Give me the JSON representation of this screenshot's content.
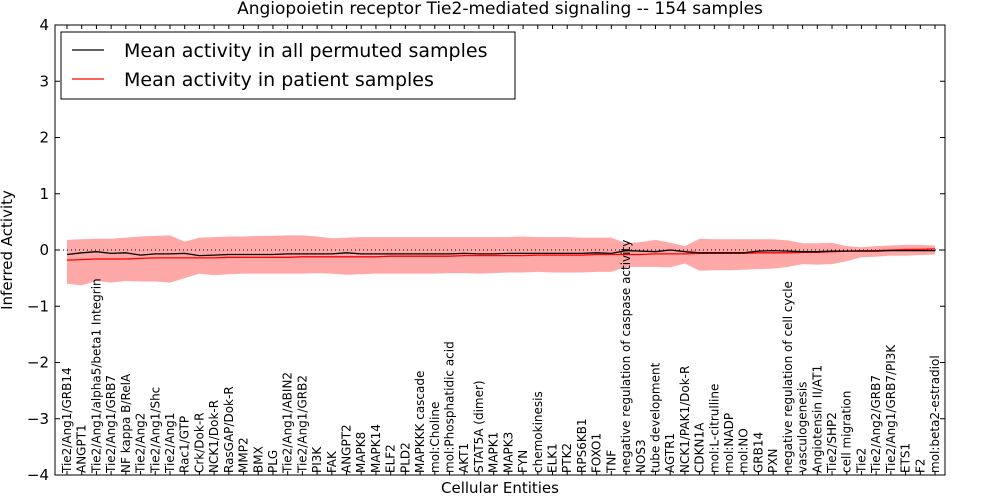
{
  "chart_data": {
    "type": "line",
    "title": "Angiopoietin receptor Tie2-mediated signaling -- 154 samples",
    "xlabel": "Cellular Entities",
    "ylabel": "Inferred Activity",
    "ylim": [
      -4,
      4
    ],
    "yticks": [
      -4,
      -3,
      -2,
      -1,
      0,
      1,
      2,
      3,
      4
    ],
    "ytick_labels": [
      "−4",
      "−3",
      "−2",
      "−1",
      "0",
      "1",
      "2",
      "3",
      "4"
    ],
    "legend_position": "top-left",
    "zero_line": "dotted",
    "categories": [
      "Tie2/Ang1/GRB14",
      "ANGPT1",
      "Tie2/Ang1/alpha5/beta1 Integrin",
      "Tie2/Ang1/GRB7",
      "NF kappa B/RelA",
      "Tie2/Ang2",
      "Tie2/Ang1/Shc",
      "Tie2/Ang1",
      "Rac1/GTP",
      "Crk/Dok-R",
      "NCK1/Dok-R",
      "RasGAP/Dok-R",
      "MMP2",
      "BMX",
      "PLG",
      "Tie2/Ang1/ABIN2",
      "Tie2/Ang1/GRB2",
      "PI3K",
      "FAK",
      "ANGPT2",
      "MAPK8",
      "MAPK14",
      "ELF2",
      "PLD2",
      "MAPKKK cascade",
      "mol:Choline",
      "mol:Phosphatidic acid",
      "AKT1",
      "STAT5A (dimer)",
      "MAPK1",
      "MAPK3",
      "FYN",
      "chemokinesis",
      "ELK1",
      "PTK2",
      "RPS6KB1",
      "FOXO1",
      "TNF",
      "negative regulation of caspase activity",
      "NOS3",
      "tube development",
      "AGTR1",
      "NCK1/PAK1/Dok-R",
      "CDKN1A",
      "mol:L-citrulline",
      "mol:NADP",
      "mol:NO",
      "GRB14",
      "PXN",
      "negative regulation of cell cycle",
      "vasculogenesis",
      "Angiotensin II/AT1",
      "Tie2/SHP2",
      "cell migration",
      "Tie2",
      "Tie2/Ang2/GRB7",
      "Tie2/Ang1/GRB7/PI3K",
      "ETS1",
      "F2",
      "mol:beta2-estradiol"
    ],
    "series": [
      {
        "name": "Mean activity in all permuted samples",
        "color": "#000000",
        "values": [
          -0.08,
          -0.05,
          -0.03,
          -0.06,
          -0.05,
          -0.09,
          -0.07,
          -0.07,
          -0.06,
          -0.1,
          -0.09,
          -0.08,
          -0.08,
          -0.08,
          -0.08,
          -0.07,
          -0.07,
          -0.07,
          -0.07,
          -0.05,
          -0.07,
          -0.07,
          -0.07,
          -0.07,
          -0.07,
          -0.07,
          -0.07,
          -0.06,
          -0.07,
          -0.07,
          -0.06,
          -0.06,
          -0.06,
          -0.06,
          -0.06,
          -0.06,
          -0.05,
          -0.06,
          -0.01,
          -0.02,
          -0.03,
          0.0,
          -0.03,
          -0.05,
          -0.05,
          -0.05,
          -0.05,
          -0.02,
          -0.01,
          -0.02,
          -0.03,
          -0.03,
          -0.02,
          -0.02,
          -0.02,
          -0.02,
          -0.01,
          -0.01,
          -0.01,
          -0.01
        ]
      },
      {
        "name": "Mean activity in patient samples",
        "color": "#ff0000",
        "fill": "#ff9999",
        "values": [
          -0.18,
          -0.17,
          -0.16,
          -0.16,
          -0.16,
          -0.15,
          -0.14,
          -0.14,
          -0.14,
          -0.14,
          -0.14,
          -0.13,
          -0.13,
          -0.13,
          -0.13,
          -0.13,
          -0.12,
          -0.12,
          -0.12,
          -0.12,
          -0.12,
          -0.12,
          -0.11,
          -0.11,
          -0.11,
          -0.11,
          -0.11,
          -0.1,
          -0.1,
          -0.1,
          -0.1,
          -0.1,
          -0.09,
          -0.09,
          -0.09,
          -0.09,
          -0.08,
          -0.08,
          -0.08,
          -0.08,
          -0.07,
          -0.07,
          -0.07,
          -0.06,
          -0.06,
          -0.06,
          -0.06,
          -0.05,
          -0.05,
          -0.05,
          -0.04,
          -0.04,
          -0.03,
          -0.02,
          -0.01,
          -0.01,
          0.0,
          0.01,
          0.01,
          0.02
        ],
        "upper": [
          0.18,
          0.19,
          0.2,
          0.2,
          0.22,
          0.24,
          0.25,
          0.26,
          0.15,
          0.22,
          0.23,
          0.24,
          0.24,
          0.25,
          0.25,
          0.26,
          0.26,
          0.24,
          0.21,
          0.22,
          0.23,
          0.23,
          0.23,
          0.23,
          0.23,
          0.23,
          0.23,
          0.23,
          0.23,
          0.23,
          0.23,
          0.24,
          0.23,
          0.23,
          0.23,
          0.22,
          0.22,
          0.22,
          0.12,
          0.14,
          0.18,
          0.13,
          0.07,
          0.2,
          0.19,
          0.19,
          0.19,
          0.19,
          0.19,
          0.17,
          0.12,
          0.12,
          0.13,
          0.07,
          0.05,
          0.07,
          0.08,
          0.09,
          0.09,
          0.08
        ],
        "lower": [
          -0.6,
          -0.63,
          -0.55,
          -0.58,
          -0.55,
          -0.56,
          -0.56,
          -0.58,
          -0.5,
          -0.42,
          -0.45,
          -0.43,
          -0.42,
          -0.42,
          -0.42,
          -0.42,
          -0.42,
          -0.41,
          -0.42,
          -0.44,
          -0.43,
          -0.42,
          -0.42,
          -0.42,
          -0.42,
          -0.42,
          -0.41,
          -0.41,
          -0.42,
          -0.41,
          -0.4,
          -0.4,
          -0.39,
          -0.4,
          -0.4,
          -0.4,
          -0.39,
          -0.39,
          -0.3,
          -0.3,
          -0.3,
          -0.31,
          -0.24,
          -0.37,
          -0.36,
          -0.36,
          -0.35,
          -0.34,
          -0.33,
          -0.3,
          -0.25,
          -0.26,
          -0.25,
          -0.2,
          -0.13,
          -0.12,
          -0.1,
          -0.1,
          -0.09,
          -0.08
        ]
      }
    ]
  }
}
